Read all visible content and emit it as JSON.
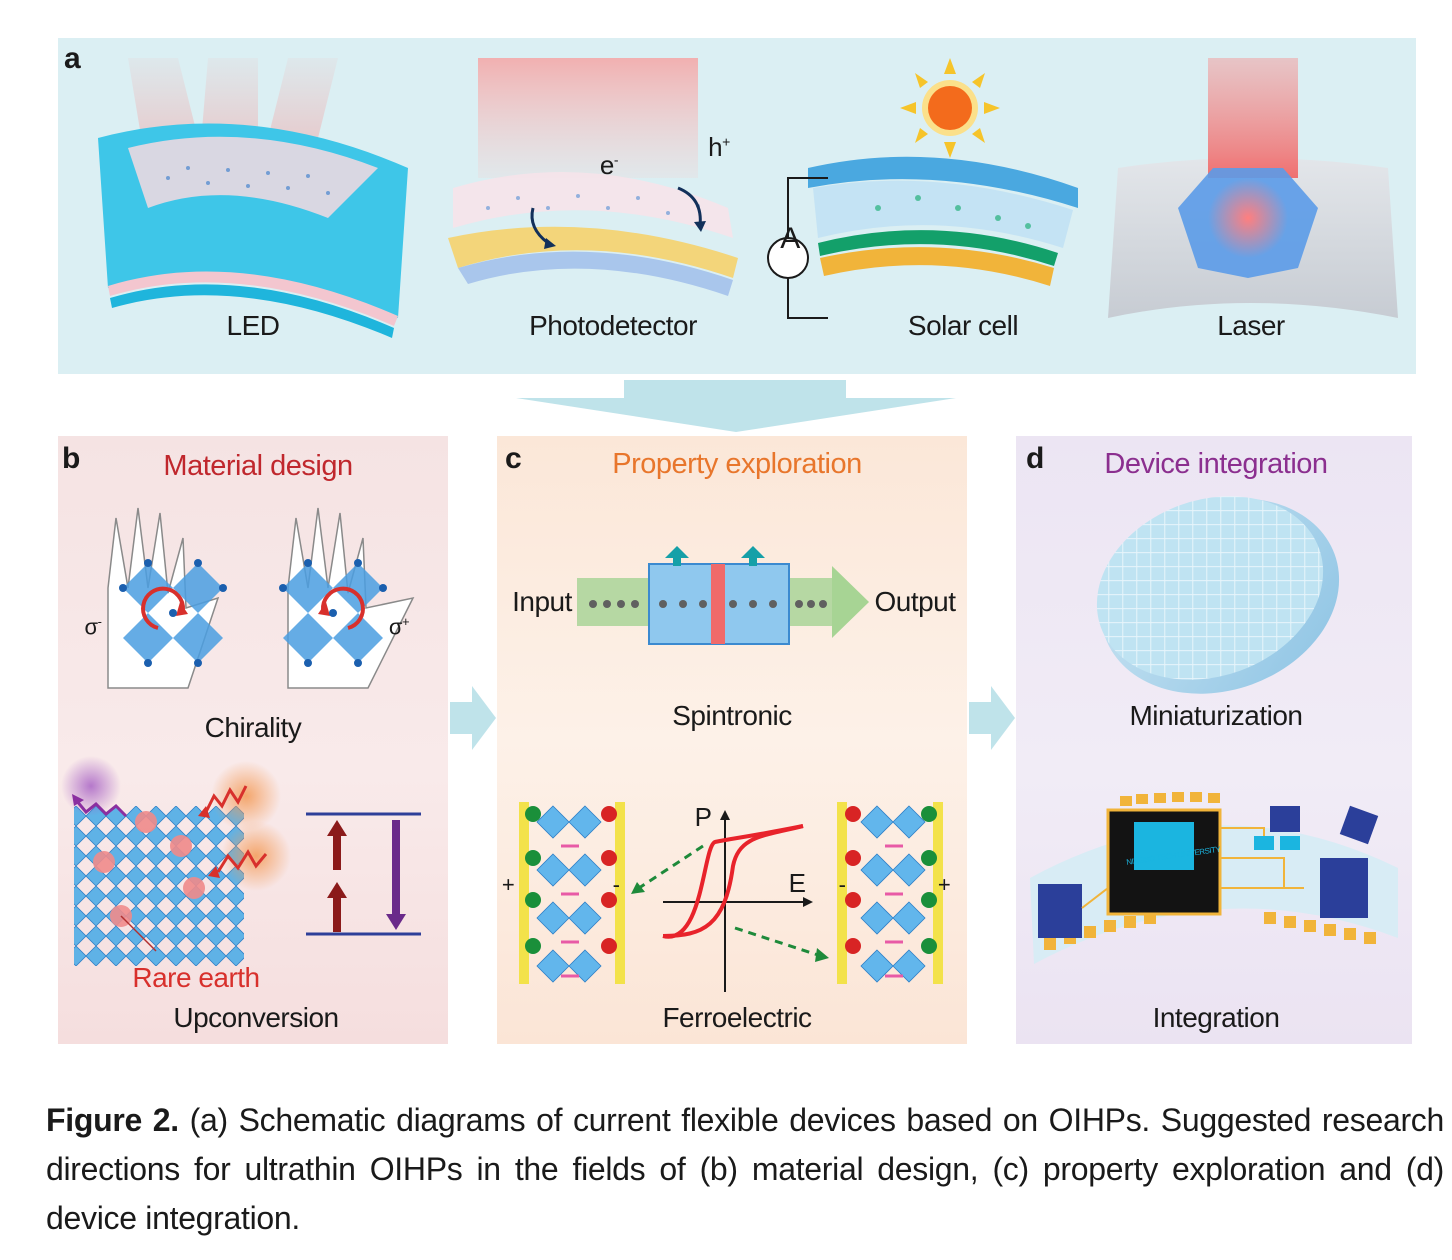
{
  "panel_a": {
    "letter": "a",
    "devices": [
      {
        "name": "LED"
      },
      {
        "name": "Photodetector"
      },
      {
        "name": "Solar cell"
      },
      {
        "name": "Laser"
      }
    ],
    "photodetector_labels": {
      "electron": "e",
      "electron_sup": "-",
      "hole": "h",
      "hole_sup": "+"
    },
    "ammeter_label": "A"
  },
  "panel_b": {
    "letter": "b",
    "heading": "Material design",
    "chirality_label": "Chirality",
    "sigma_left": "σ",
    "sigma_left_sup": "-",
    "sigma_right": "σ",
    "sigma_right_sup": "+",
    "rare_earth_label": "Rare earth",
    "upconversion_label": "Upconversion"
  },
  "panel_c": {
    "letter": "c",
    "heading": "Property exploration",
    "input_label": "Input",
    "output_label": "Output",
    "spintronic_label": "Spintronic",
    "axis_p": "P",
    "axis_e": "E",
    "plus_sign": "+",
    "minus_sign": "-",
    "ferroelectric_label": "Ferroelectric"
  },
  "panel_d": {
    "letter": "d",
    "heading": "Device integration",
    "miniaturization_label": "Miniaturization",
    "chip_text": "NINGBO TECH UNIVERSITY",
    "integration_label": "Integration"
  },
  "figure_caption": {
    "label": "Figure 2.",
    "text": " (a) Schematic diagrams of current flexible devices based on OIHPs. Suggested research directions for ultrathin OIHPs in the fields of (b) material design, (c) property exploration and (d) device integration."
  },
  "colors": {
    "panel_a_bg": "#dbeff3",
    "heading_b": "#c0272d",
    "heading_c": "#e8762c",
    "heading_d": "#8b2f8f",
    "arrow": "#bfe3ea"
  }
}
